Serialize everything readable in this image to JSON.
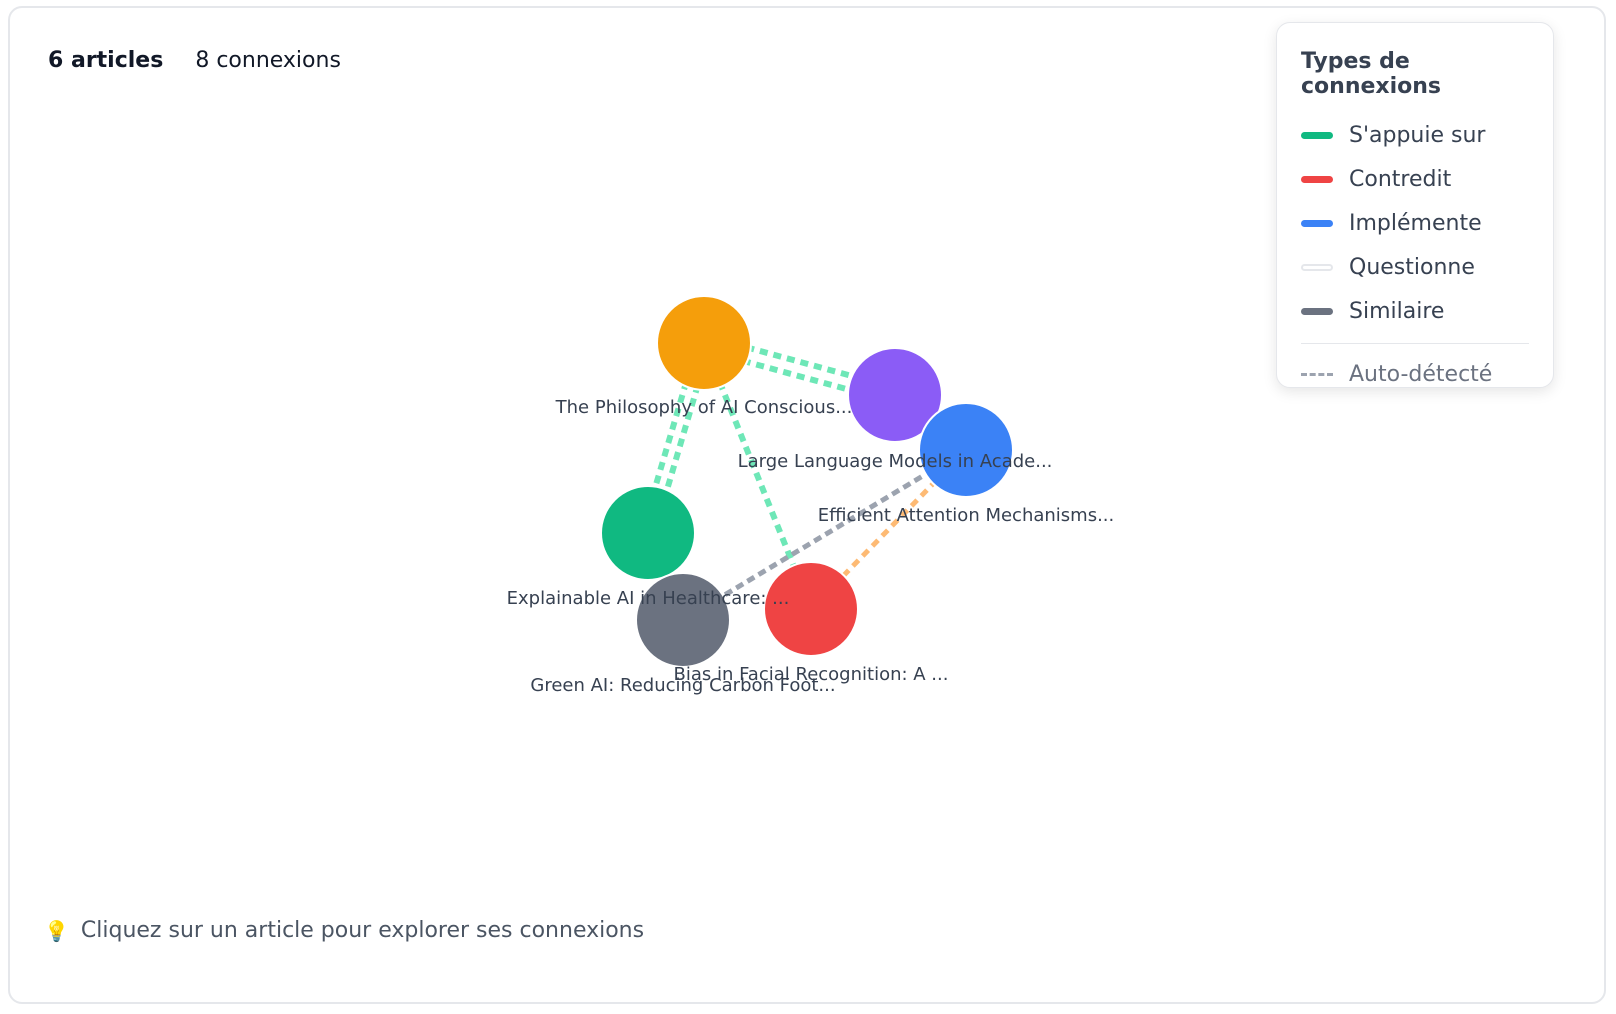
{
  "stats": {
    "articles": "6 articles",
    "connections": "8 connexions"
  },
  "legend": {
    "title": "Types de connexions",
    "items": [
      {
        "label": "S'appuie sur",
        "color": "#10b981"
      },
      {
        "label": "Contredit",
        "color": "#ef4444"
      },
      {
        "label": "Implémente",
        "color": "#3b82f6"
      },
      {
        "label": "Questionne",
        "color": "#e5e7eb"
      },
      {
        "label": "Similaire",
        "color": "#6b7280"
      }
    ],
    "auto_label": "Auto-détecté"
  },
  "hint": {
    "icon": "lightbulb-icon",
    "text": "Cliquez sur un article pour explorer ses connexions"
  },
  "graph": {
    "nodes": [
      {
        "id": "philosophy",
        "label": "The Philosophy of AI Conscious...",
        "color": "#f59e0b"
      },
      {
        "id": "llm",
        "label": "Large Language Models in Acade...",
        "color": "#8b5cf6"
      },
      {
        "id": "attention",
        "label": "Efficient Attention Mechanisms...",
        "color": "#3b82f6"
      },
      {
        "id": "xai",
        "label": "Explainable AI in Healthcare: ...",
        "color": "#10b981"
      },
      {
        "id": "green",
        "label": "Green AI: Reducing Carbon Foot...",
        "color": "#6b7280"
      },
      {
        "id": "bias",
        "label": "Bias in Facial Recognition: A ...",
        "color": "#ef4444"
      }
    ],
    "edges": [
      {
        "source": "philosophy",
        "target": "llm",
        "type": "S'appuie sur",
        "color": "#6ee7b7",
        "auto": true
      },
      {
        "source": "philosophy",
        "target": "llm",
        "type": "S'appuie sur",
        "color": "#6ee7b7",
        "auto": true
      },
      {
        "source": "philosophy",
        "target": "xai",
        "type": "S'appuie sur",
        "color": "#6ee7b7",
        "auto": true
      },
      {
        "source": "philosophy",
        "target": "xai",
        "type": "S'appuie sur",
        "color": "#6ee7b7",
        "auto": true
      },
      {
        "source": "philosophy",
        "target": "bias",
        "type": "S'appuie sur",
        "color": "#6ee7b7",
        "auto": true
      },
      {
        "source": "attention",
        "target": "bias",
        "type": "Contredit",
        "color": "#fdba74",
        "auto": true
      },
      {
        "source": "attention",
        "target": "green",
        "type": "Similaire",
        "color": "#9ca3af",
        "auto": true
      },
      {
        "source": "attention",
        "target": "green",
        "type": "Similaire",
        "color": "#9ca3af",
        "auto": true
      }
    ]
  }
}
